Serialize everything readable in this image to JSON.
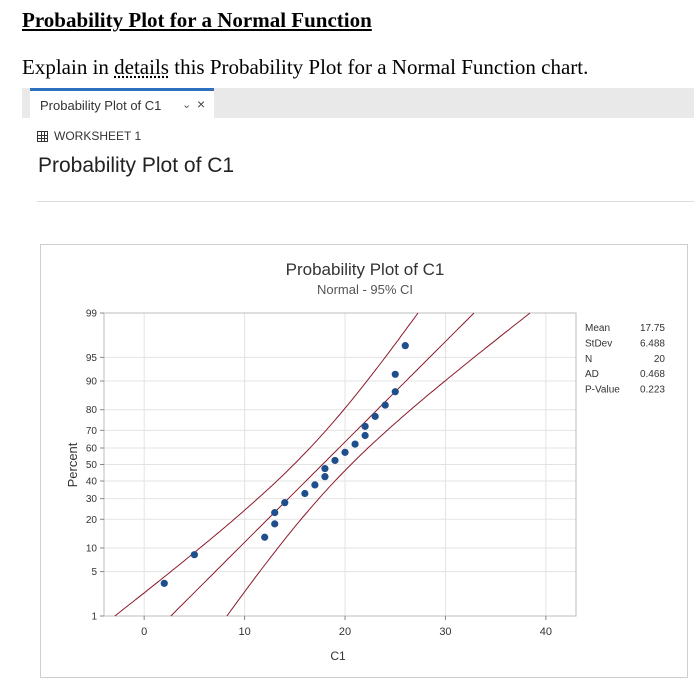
{
  "doc": {
    "heading": "Probability Plot for a Normal Function",
    "q_before": "Explain in ",
    "q_link": "details",
    "q_after": " this Probability Plot for a Normal Function chart."
  },
  "tab": {
    "label": "Probability Plot of C1",
    "chevron": "⌄",
    "close": "×"
  },
  "worksheet": {
    "label": "WORKSHEET 1"
  },
  "page_title": "Probability Plot of C1",
  "chart_data": {
    "type": "scatter",
    "title": "Probability Plot of C1",
    "subtitle": "Normal - 95% CI",
    "xlabel": "C1",
    "ylabel": "Percent",
    "xlim": [
      -4,
      43
    ],
    "ylim_percent": [
      1,
      99
    ],
    "x_ticks": [
      0,
      10,
      20,
      30,
      40
    ],
    "y_ticks": [
      1,
      5,
      10,
      20,
      30,
      40,
      50,
      60,
      70,
      80,
      90,
      95,
      99
    ],
    "grid": true,
    "points": [
      {
        "x": 2,
        "y": 3.4
      },
      {
        "x": 5,
        "y": 8.3
      },
      {
        "x": 12,
        "y": 13.2
      },
      {
        "x": 13,
        "y": 18.1
      },
      {
        "x": 13,
        "y": 23.0
      },
      {
        "x": 14,
        "y": 27.9
      },
      {
        "x": 16,
        "y": 32.8
      },
      {
        "x": 17,
        "y": 37.7
      },
      {
        "x": 18,
        "y": 42.6
      },
      {
        "x": 18,
        "y": 47.5
      },
      {
        "x": 19,
        "y": 52.5
      },
      {
        "x": 20,
        "y": 57.4
      },
      {
        "x": 21,
        "y": 62.3
      },
      {
        "x": 22,
        "y": 67.2
      },
      {
        "x": 22,
        "y": 72.1
      },
      {
        "x": 23,
        "y": 77.0
      },
      {
        "x": 24,
        "y": 81.9
      },
      {
        "x": 25,
        "y": 86.8
      },
      {
        "x": 25,
        "y": 91.7
      },
      {
        "x": 26,
        "y": 96.6
      }
    ],
    "fit_line": {
      "mean": 17.75,
      "stdev": 6.488
    },
    "ci": "95%",
    "point_color": "#1f4e8c",
    "line_color": "#8b1a2b",
    "stats": [
      {
        "label": "Mean",
        "value": "17.75"
      },
      {
        "label": "StDev",
        "value": "6.488"
      },
      {
        "label": "N",
        "value": "20"
      },
      {
        "label": "AD",
        "value": "0.468"
      },
      {
        "label": "P-Value",
        "value": "0.223"
      }
    ]
  }
}
